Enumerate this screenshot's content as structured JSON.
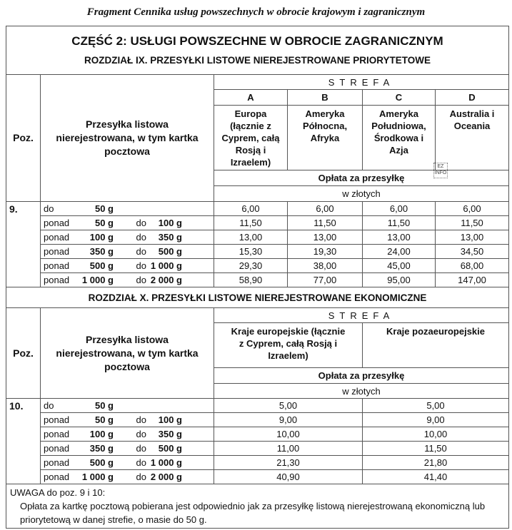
{
  "caption": "Fragment Cennika usług powszechnych w obrocie krajowym i zagranicznym",
  "part_title": "CZĘŚĆ 2: USŁUGI POWSZECHNE W OBROCIE ZAGRANICZNYM",
  "watermark": "EZ INFO",
  "sections": [
    {
      "title": "ROZDZIAŁ IX. PRZESYŁKI  LISTOWE  NIEREJESTROWANE PRIORYTETOWE",
      "poz_header": "Poz.",
      "desc_header": "Przesyłka listowa nierejestrowana, w tym kartka pocztowa",
      "strefa": "STREFA",
      "zones": [
        {
          "code": "A",
          "name": "Europa (łącznie z Cyprem, całą Rosją i Izraelem)"
        },
        {
          "code": "B",
          "name": "Ameryka Północna, Afryka"
        },
        {
          "code": "C",
          "name": "Ameryka Południowa, Środkowa i Azja"
        },
        {
          "code": "D",
          "name": "Australia i Oceania"
        }
      ],
      "fee_label": "Opłata za przesyłkę",
      "unit_label": "w złotych",
      "poz": "9.",
      "rows": [
        {
          "k1": "do",
          "v1": "50 g",
          "k2": "",
          "v2": "",
          "prices": [
            "6,00",
            "6,00",
            "6,00",
            "6,00"
          ]
        },
        {
          "k1": "ponad",
          "v1": "50 g",
          "k2": "do",
          "v2": "100 g",
          "prices": [
            "11,50",
            "11,50",
            "11,50",
            "11,50"
          ]
        },
        {
          "k1": "ponad",
          "v1": "100 g",
          "k2": "do",
          "v2": "350 g",
          "prices": [
            "13,00",
            "13,00",
            "13,00",
            "13,00"
          ]
        },
        {
          "k1": "ponad",
          "v1": "350 g",
          "k2": "do",
          "v2": "500 g",
          "prices": [
            "15,30",
            "19,30",
            "24,00",
            "34,50"
          ]
        },
        {
          "k1": "ponad",
          "v1": "500 g",
          "k2": "do",
          "v2": "1 000 g",
          "prices": [
            "29,30",
            "38,00",
            "45,00",
            "68,00"
          ]
        },
        {
          "k1": "ponad",
          "v1": "1 000 g",
          "k2": "do",
          "v2": "2 000 g",
          "prices": [
            "58,90",
            "77,00",
            "95,00",
            "147,00"
          ]
        }
      ]
    },
    {
      "title": "ROZDZIAŁ  X.  PRZESYŁKI LISTOWE NIEREJESTROWANE EKONOMICZNE",
      "poz_header": "Poz.",
      "desc_header": "Przesyłka listowa nierejestrowana, w tym kartka pocztowa",
      "strefa": "STREFA",
      "zones": [
        {
          "name": "Kraje europejskie (łącznie z Cyprem, całą Rosją i Izraelem)"
        },
        {
          "name": "Kraje pozaeuropejskie"
        }
      ],
      "fee_label": "Opłata za przesyłkę",
      "unit_label": "w złotych",
      "poz": "10.",
      "rows": [
        {
          "k1": "do",
          "v1": "50 g",
          "k2": "",
          "v2": "",
          "prices": [
            "5,00",
            "5,00"
          ]
        },
        {
          "k1": "ponad",
          "v1": "50 g",
          "k2": "do",
          "v2": "100 g",
          "prices": [
            "9,00",
            "9,00"
          ]
        },
        {
          "k1": "ponad",
          "v1": "100 g",
          "k2": "do",
          "v2": "350 g",
          "prices": [
            "10,00",
            "10,00"
          ]
        },
        {
          "k1": "ponad",
          "v1": "350 g",
          "k2": "do",
          "v2": "500 g",
          "prices": [
            "11,00",
            "11,50"
          ]
        },
        {
          "k1": "ponad",
          "v1": "500 g",
          "k2": "do",
          "v2": "1 000 g",
          "prices": [
            "21,30",
            "21,80"
          ]
        },
        {
          "k1": "ponad",
          "v1": "1 000 g",
          "k2": "do",
          "v2": "2 000 g",
          "prices": [
            "40,90",
            "41,40"
          ]
        }
      ]
    }
  ],
  "note": {
    "heading": "UWAGA do poz. 9 i 10:",
    "text": "Opłata za kartkę pocztową pobierana jest odpowiednio jak za przesyłkę listową nierejestrowaną ekonomiczną lub priorytetową w danej strefie, o masie do 50 g."
  }
}
